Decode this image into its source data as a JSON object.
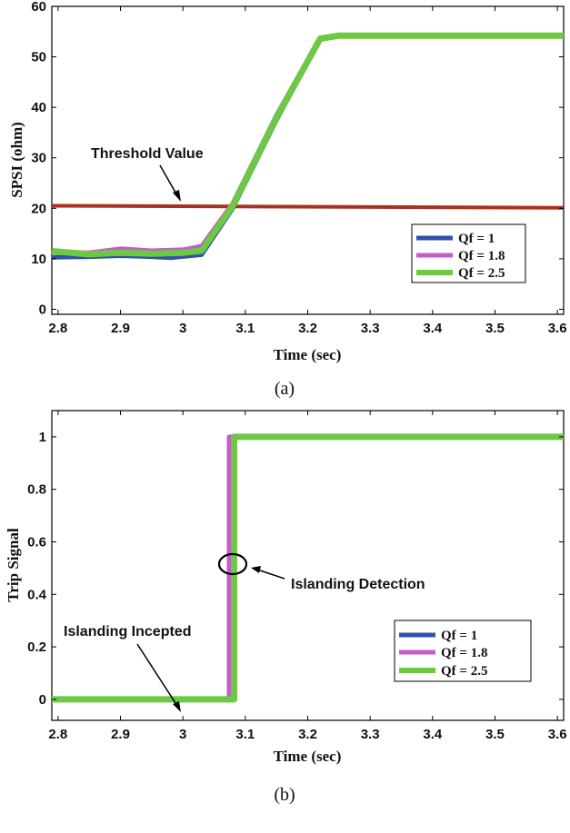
{
  "chart_data": [
    {
      "id": "a",
      "type": "line",
      "caption": "(a)",
      "xlabel": "Time (sec)",
      "ylabel": "SPSI (ohm)",
      "xlim": [
        2.79,
        3.61
      ],
      "ylim": [
        -1,
        60
      ],
      "xticks": [
        "2.8",
        "2.9",
        "3",
        "3.1",
        "3.2",
        "3.3",
        "3.4",
        "3.5",
        "3.6"
      ],
      "yticks": [
        "0",
        "10",
        "20",
        "30",
        "40",
        "50",
        "60"
      ],
      "threshold": {
        "label": "Threshold Value",
        "color": "#a8321e",
        "points": [
          [
            2.79,
            20.5
          ],
          [
            3.61,
            20.1
          ]
        ]
      },
      "legend_position": "right-middle",
      "series": [
        {
          "name": "Qf = 1",
          "color": "#2f52a8",
          "points": [
            [
              2.79,
              10.3
            ],
            [
              2.85,
              10.4
            ],
            [
              2.9,
              10.6
            ],
            [
              2.95,
              10.4
            ],
            [
              2.98,
              10.2
            ],
            [
              3.03,
              10.8
            ],
            [
              3.08,
              20.0
            ],
            [
              3.15,
              37.5
            ],
            [
              3.22,
              53.5
            ],
            [
              3.25,
              54.2
            ],
            [
              3.3,
              54.2
            ],
            [
              3.4,
              54.2
            ],
            [
              3.5,
              54.2
            ],
            [
              3.61,
              54.2
            ]
          ]
        },
        {
          "name": "Qf = 1.8",
          "color": "#c25ec6",
          "points": [
            [
              2.79,
              11.4
            ],
            [
              2.85,
              11.2
            ],
            [
              2.9,
              12.0
            ],
            [
              2.95,
              11.6
            ],
            [
              3.0,
              11.8
            ],
            [
              3.03,
              12.5
            ],
            [
              3.08,
              21.0
            ],
            [
              3.15,
              38.5
            ],
            [
              3.22,
              53.8
            ],
            [
              3.25,
              54.2
            ],
            [
              3.3,
              54.2
            ],
            [
              3.4,
              54.2
            ],
            [
              3.5,
              54.2
            ],
            [
              3.61,
              54.2
            ]
          ]
        },
        {
          "name": "Qf = 2.5",
          "color": "#6dc844",
          "points": [
            [
              2.79,
              11.5
            ],
            [
              2.85,
              10.9
            ],
            [
              2.9,
              11.2
            ],
            [
              2.95,
              11.0
            ],
            [
              3.0,
              11.2
            ],
            [
              3.03,
              11.6
            ],
            [
              3.08,
              20.5
            ],
            [
              3.15,
              38.0
            ],
            [
              3.22,
              53.6
            ],
            [
              3.25,
              54.2
            ],
            [
              3.3,
              54.2
            ],
            [
              3.4,
              54.2
            ],
            [
              3.5,
              54.2
            ],
            [
              3.61,
              54.2
            ]
          ]
        }
      ]
    },
    {
      "id": "b",
      "type": "line",
      "caption": "(b)",
      "xlabel": "Time (sec)",
      "ylabel": "Trip Signal",
      "xlim": [
        2.79,
        3.61
      ],
      "ylim": [
        -0.08,
        1.1
      ],
      "xticks": [
        "2.8",
        "2.9",
        "3",
        "3.1",
        "3.2",
        "3.3",
        "3.4",
        "3.5",
        "3.6"
      ],
      "yticks": [
        "0",
        "0.2",
        "0.4",
        "0.6",
        "0.8",
        "1"
      ],
      "annotations": [
        {
          "label": "Islanding Detection",
          "type": "ellipse",
          "x": 3.082,
          "y": 0.52
        },
        {
          "label": "Islanding Incepted",
          "type": "arrow",
          "x": 3.0,
          "y": 0.0
        }
      ],
      "legend_position": "bottom-right",
      "series": [
        {
          "name": "Qf = 1",
          "color": "#2f52a8",
          "points": [
            [
              2.79,
              0
            ],
            [
              3.079,
              0
            ],
            [
              3.079,
              1
            ],
            [
              3.61,
              1
            ]
          ]
        },
        {
          "name": "Qf = 1.8",
          "color": "#c25ec6",
          "points": [
            [
              2.79,
              0
            ],
            [
              3.074,
              0
            ],
            [
              3.074,
              1
            ],
            [
              3.61,
              1
            ]
          ]
        },
        {
          "name": "Qf = 2.5",
          "color": "#6dc844",
          "points": [
            [
              2.79,
              0
            ],
            [
              3.082,
              0
            ],
            [
              3.082,
              1
            ],
            [
              3.61,
              1
            ]
          ]
        }
      ]
    }
  ]
}
